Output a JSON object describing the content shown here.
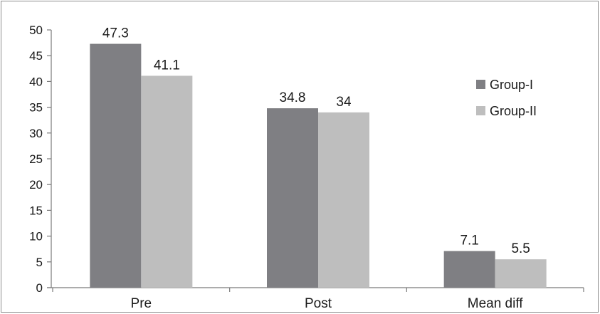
{
  "chart_data": {
    "type": "bar",
    "title": "",
    "xlabel": "",
    "ylabel": "",
    "categories": [
      "Pre",
      "Post",
      "Mean diff"
    ],
    "series": [
      {
        "name": "Group-I",
        "values": [
          47.3,
          34.8,
          7.1
        ],
        "color": "#7f7f83"
      },
      {
        "name": "Group-II",
        "values": [
          41.1,
          34,
          5.5
        ],
        "color": "#bebebe"
      }
    ],
    "ylim": [
      0,
      50
    ],
    "yticks": [
      0,
      5,
      10,
      15,
      20,
      25,
      30,
      35,
      40,
      45,
      50
    ],
    "grid": false,
    "legend_position": "right"
  }
}
